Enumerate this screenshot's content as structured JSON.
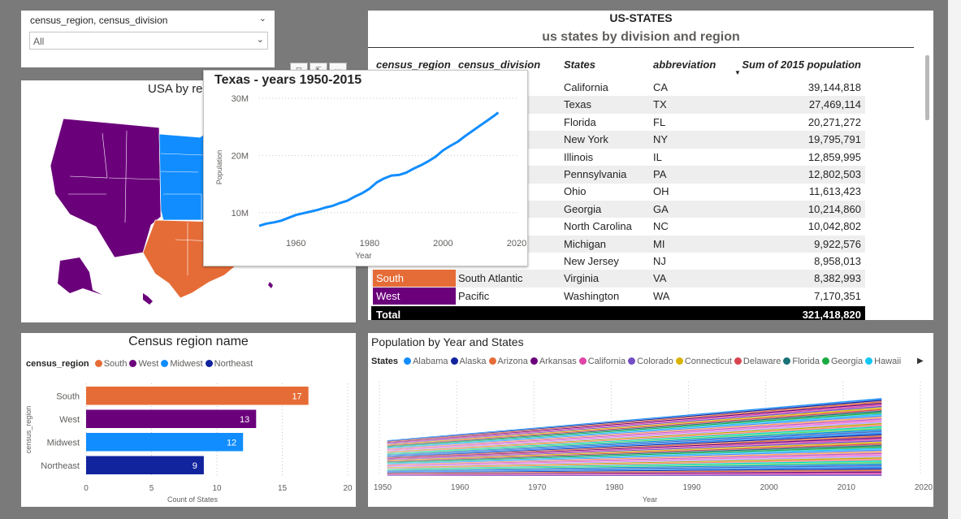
{
  "slicer": {
    "title": "census_region, census_division",
    "value": "All"
  },
  "map": {
    "title": "USA by re"
  },
  "tooltip": {
    "title": "Texas - years 1950-2015",
    "chart_data": {
      "type": "line",
      "title": "Texas - years 1950-2015",
      "xlabel": "Year",
      "ylabel": "Population",
      "xlim": [
        1950,
        2020
      ],
      "ylim": [
        7000000,
        30000000
      ],
      "x_ticks": [
        "1960",
        "1980",
        "2000",
        "2020"
      ],
      "y_ticks": [
        "10M",
        "20M",
        "30M"
      ],
      "x": [
        1950,
        1952,
        1954,
        1956,
        1958,
        1960,
        1962,
        1964,
        1966,
        1968,
        1970,
        1972,
        1974,
        1976,
        1978,
        1980,
        1982,
        1984,
        1986,
        1988,
        1990,
        1992,
        1994,
        1996,
        1998,
        2000,
        2002,
        2004,
        2006,
        2008,
        2010,
        2012,
        2014,
        2015
      ],
      "values": [
        7700000,
        8100000,
        8300000,
        8600000,
        9100000,
        9600000,
        9900000,
        10200000,
        10500000,
        10900000,
        11200000,
        11700000,
        12100000,
        12800000,
        13400000,
        14200000,
        15300000,
        16000000,
        16500000,
        16600000,
        17000000,
        17700000,
        18300000,
        19000000,
        19800000,
        20900000,
        21700000,
        22400000,
        23400000,
        24300000,
        25200000,
        26100000,
        27000000,
        27500000
      ]
    }
  },
  "table": {
    "title": "US-STATES",
    "subtitle": "us states by division and region",
    "columns": [
      "census_region",
      "census_division",
      "States",
      "abbreviation",
      "Sum of 2015 population"
    ],
    "rows": [
      [
        "",
        "",
        "California",
        "CA",
        "39,144,818"
      ],
      [
        "",
        "ntral",
        "Texas",
        "TX",
        "27,469,114"
      ],
      [
        "",
        "",
        "Florida",
        "FL",
        "20,271,272"
      ],
      [
        "",
        "",
        "New York",
        "NY",
        "19,795,791"
      ],
      [
        "",
        "ntral",
        "Illinois",
        "IL",
        "12,859,995"
      ],
      [
        "",
        "",
        "Pennsylvania",
        "PA",
        "12,802,503"
      ],
      [
        "",
        "ntral",
        "Ohio",
        "OH",
        "11,613,423"
      ],
      [
        "",
        "",
        "Georgia",
        "GA",
        "10,214,860"
      ],
      [
        "",
        "",
        "North Carolina",
        "NC",
        "10,042,802"
      ],
      [
        "",
        "ntral",
        "Michigan",
        "MI",
        "9,922,576"
      ],
      [
        "",
        "",
        "New Jersey",
        "NJ",
        "8,958,013"
      ],
      [
        "South",
        "South Atlantic",
        "Virginia",
        "VA",
        "8,382,993"
      ],
      [
        "West",
        "Pacific",
        "Washington",
        "WA",
        "7,170,351"
      ]
    ],
    "row_colors": [
      "",
      "",
      "",
      "",
      "",
      "",
      "",
      "",
      "",
      "",
      "",
      "#e66c37",
      "#6b007b"
    ],
    "total_label": "Total",
    "total_value": "321,418,820"
  },
  "barchart": {
    "title": "Census region name",
    "legend_title": "census_region",
    "chart_data": {
      "type": "bar",
      "title": "Census region name",
      "categories": [
        "South",
        "West",
        "Midwest",
        "Northeast"
      ],
      "values": [
        17,
        13,
        12,
        9
      ],
      "colors": [
        "#e66c37",
        "#6b007b",
        "#118dff",
        "#12239e"
      ],
      "xlabel": "Count of States",
      "ylabel": "census_region",
      "xlim": [
        0,
        20
      ],
      "x_ticks": [
        "0",
        "5",
        "10",
        "15",
        "20"
      ],
      "legend": [
        "South",
        "West",
        "Midwest",
        "Northeast"
      ]
    }
  },
  "areachart": {
    "title": "Population by Year and States",
    "legend_title": "States",
    "legend": [
      {
        "name": "Alabama",
        "color": "#118dff"
      },
      {
        "name": "Alaska",
        "color": "#12239e"
      },
      {
        "name": "Arizona",
        "color": "#e66c37"
      },
      {
        "name": "Arkansas",
        "color": "#6b007b"
      },
      {
        "name": "California",
        "color": "#e044a7"
      },
      {
        "name": "Colorado",
        "color": "#744ec2"
      },
      {
        "name": "Connecticut",
        "color": "#d9b300"
      },
      {
        "name": "Delaware",
        "color": "#d64550"
      },
      {
        "name": "Florida",
        "color": "#197278"
      },
      {
        "name": "Georgia",
        "color": "#1aab40"
      },
      {
        "name": "Hawaii",
        "color": "#15c6f4"
      }
    ],
    "chart_data": {
      "type": "area",
      "title": "Population by Year and States",
      "xlabel": "Year",
      "xlim": [
        1950,
        2020
      ],
      "x_ticks": [
        "1950",
        "1960",
        "1970",
        "1980",
        "1990",
        "2000",
        "2010",
        "2020"
      ],
      "stack_palette": [
        "#118dff",
        "#12239e",
        "#e66c37",
        "#6b007b",
        "#e044a7",
        "#744ec2",
        "#d9b300",
        "#d64550",
        "#197278",
        "#1aab40",
        "#15c6f4",
        "#4092ff",
        "#ffa058",
        "#be5dc9",
        "#f472d0",
        "#b5a1ff",
        "#c4a200",
        "#ff8080",
        "#00dbbc",
        "#5bd667",
        "#0091d5",
        "#4668c5"
      ]
    }
  }
}
